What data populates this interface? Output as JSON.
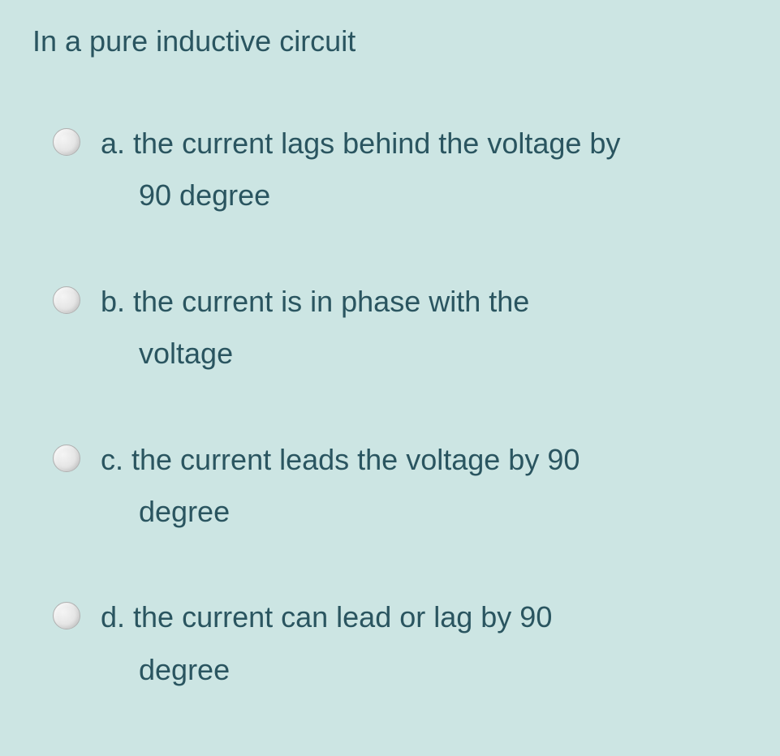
{
  "question": {
    "text": "In a pure inductive circuit",
    "text_color": "#2a5560",
    "font_size": 36,
    "background_color": "#cce5e3"
  },
  "options": [
    {
      "letter": "a.",
      "line1": "a. the current lags behind the voltage by",
      "line2": "90 degree",
      "selected": false
    },
    {
      "letter": "b.",
      "line1": "b. the current is in phase with the",
      "line2": "voltage",
      "selected": false
    },
    {
      "letter": "c.",
      "line1": "c. the current leads the voltage by 90",
      "line2": "degree",
      "selected": false
    },
    {
      "letter": "d.",
      "line1": "d. the current can lead or lag by 90",
      "line2": "degree",
      "selected": false
    }
  ],
  "styling": {
    "radio_size": 34,
    "radio_bg_light": "#f5f5f5",
    "radio_bg_dark": "#d8d8d8",
    "radio_border": "#b0b0b0",
    "option_gap": 80,
    "option_indent": 47
  }
}
